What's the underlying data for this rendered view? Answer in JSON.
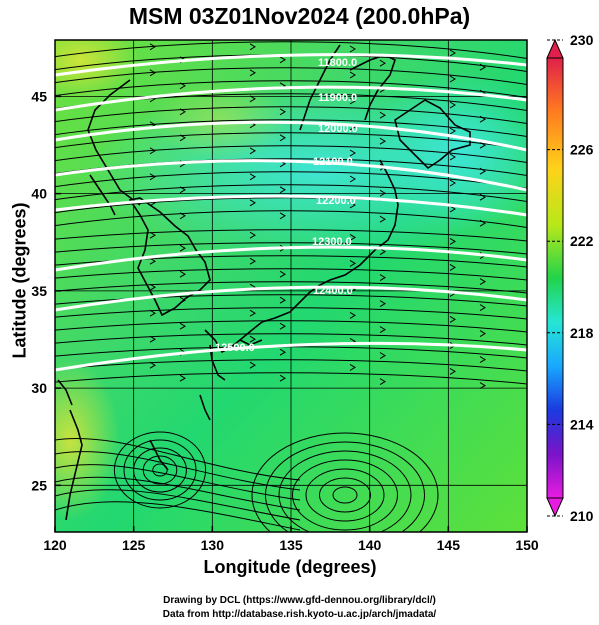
{
  "title": "MSM 03Z01Nov2024 (200.0hPa)",
  "axes": {
    "xlabel": "Longitude (degrees)",
    "ylabel": "Latitude  (degrees)",
    "x_ticks": [
      "120",
      "125",
      "130",
      "135",
      "140",
      "145",
      "150"
    ],
    "y_ticks": [
      "25",
      "30",
      "35",
      "40",
      "45"
    ]
  },
  "colorbar": {
    "labels": [
      "230",
      "226",
      "222",
      "218",
      "214",
      "210"
    ],
    "colors": [
      "#e0204a",
      "#ff7a20",
      "#ffd21a",
      "#b8e81a",
      "#22d34a",
      "#26e6d4",
      "#19a8ff",
      "#1a3ae0",
      "#7a14c8",
      "#e81ce0"
    ]
  },
  "contour_labels": [
    "11800.0",
    "11900.0",
    "12000.0",
    "12100.0",
    "12200.0",
    "12300.0",
    "12400.0",
    "12500.0"
  ],
  "credits": {
    "line1": "Drawing by DCL (https://www.gfd-dennou.org/library/dcl/)",
    "line2": "Data from http://database.rish.kyoto-u.ac.jp/arch/jmadata/"
  }
}
